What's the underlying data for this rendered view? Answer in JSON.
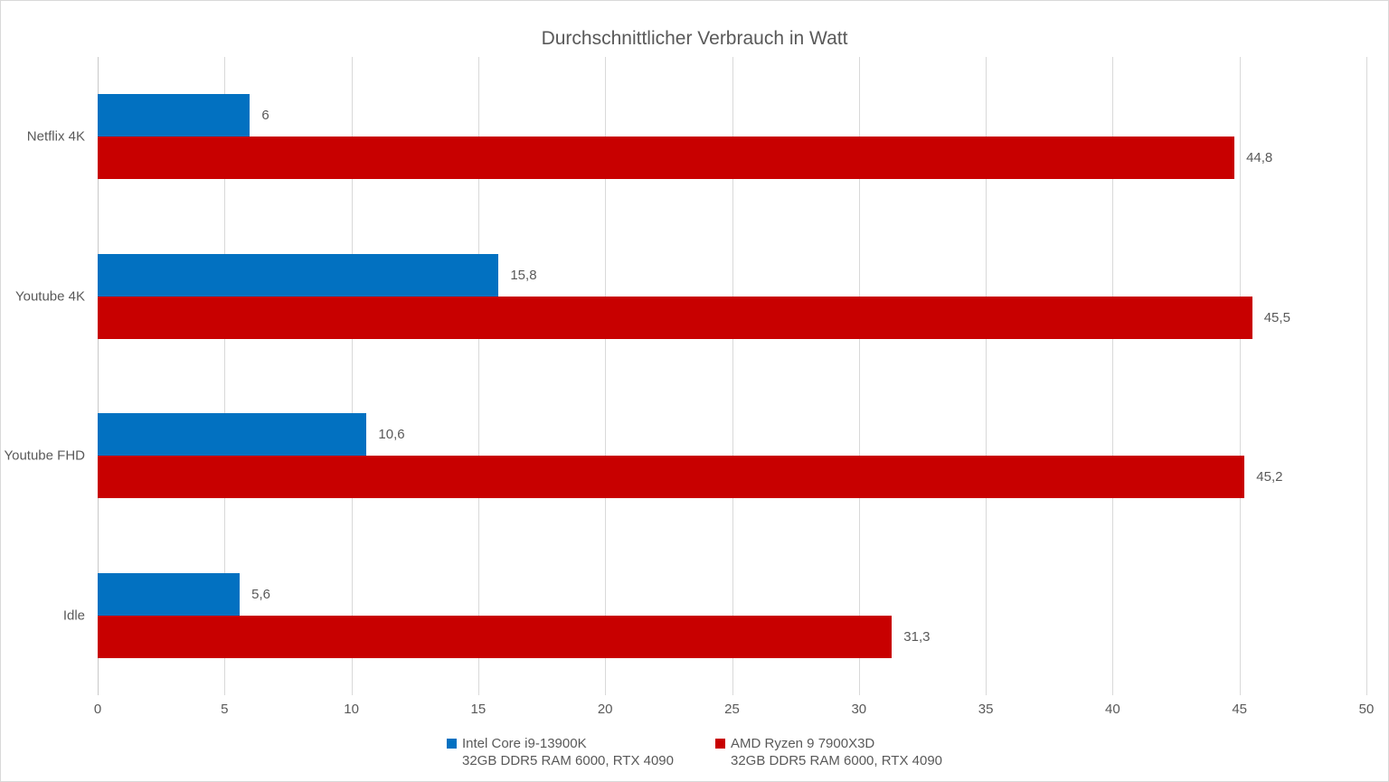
{
  "chart_data": {
    "type": "bar",
    "orientation": "horizontal",
    "title": "Durchschnittlicher Verbrauch in Watt",
    "categories": [
      "Netflix 4K",
      "Youtube 4K",
      "Youtube FHD",
      "Idle"
    ],
    "series": [
      {
        "name": "Intel Core i9-13900K",
        "subtitle": "32GB DDR5 RAM 6000, RTX 4090",
        "color": "#0271c1",
        "values": [
          6,
          15.8,
          10.6,
          5.6
        ],
        "value_labels": [
          "6",
          "15,8",
          "10,6",
          "5,6"
        ]
      },
      {
        "name": "AMD Ryzen 9 7900X3D",
        "subtitle": "32GB DDR5 RAM 6000, RTX 4090",
        "color": "#c80000",
        "values": [
          44.8,
          45.5,
          45.2,
          31.3
        ],
        "value_labels": [
          "44,8",
          "45,5",
          "45,2",
          "31,3"
        ]
      }
    ],
    "x_axis": {
      "min": 0,
      "max": 50,
      "tick_interval": 5,
      "tick_labels": [
        "0",
        "5",
        "10",
        "15",
        "20",
        "25",
        "30",
        "35",
        "40",
        "45",
        "50"
      ]
    },
    "grid": true,
    "legend_position": "bottom",
    "text_color": "#595959",
    "gridline_color": "#d9d9d9"
  }
}
